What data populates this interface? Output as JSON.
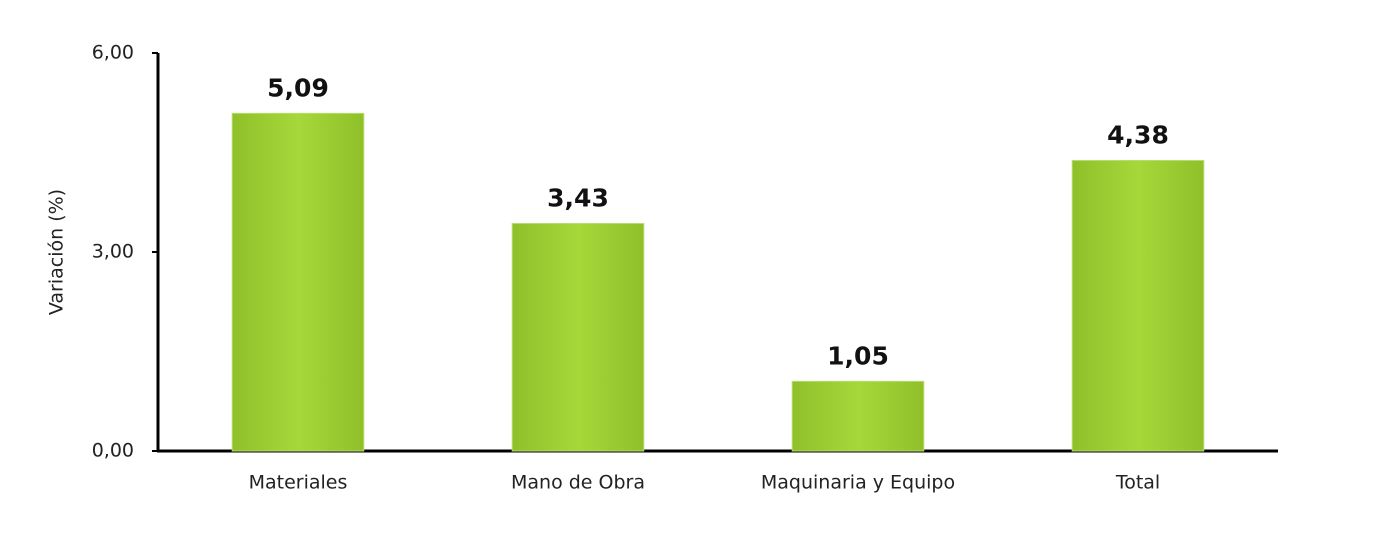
{
  "chart_data": {
    "type": "bar",
    "y_label": "Variación (%)",
    "categories": [
      "Materiales",
      "Mano de Obra",
      "Maquinaria y Equipo",
      "Total"
    ],
    "values": [
      5.09,
      3.43,
      1.05,
      4.38
    ],
    "value_labels": [
      "5,09",
      "3,43",
      "1,05",
      "4,38"
    ],
    "color": "#9fd332",
    "ylim": [
      0,
      6
    ],
    "yticks": [
      {
        "value": 0,
        "label": "0,00"
      },
      {
        "value": 3,
        "label": "3,00"
      },
      {
        "value": 6,
        "label": "6,00"
      }
    ]
  }
}
